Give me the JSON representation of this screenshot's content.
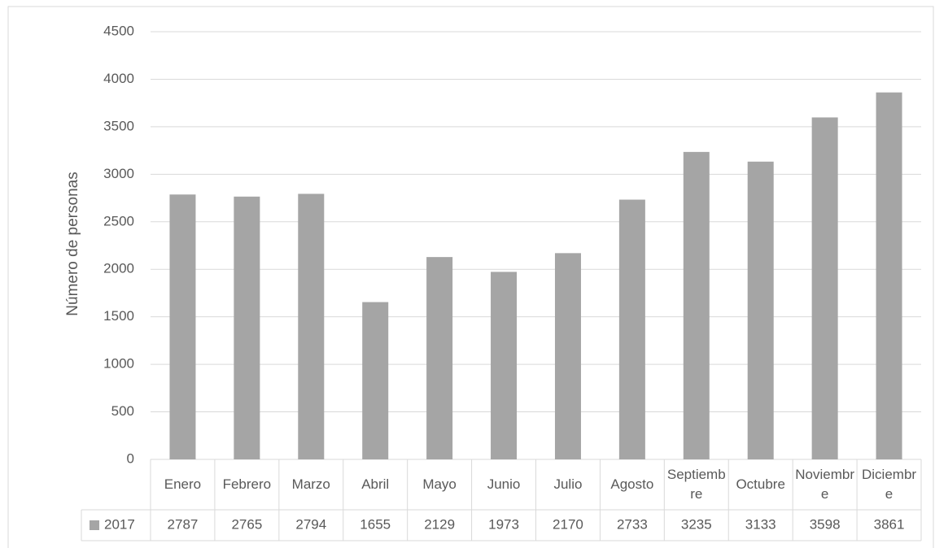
{
  "chart_data": {
    "type": "bar",
    "y_axis_label": "Número de personas",
    "categories": [
      "Enero",
      "Febrero",
      "Marzo",
      "Abril",
      "Mayo",
      "Junio",
      "Julio",
      "Agosto",
      "Septiembre",
      "Octubre",
      "Noviembre",
      "Diciembre"
    ],
    "series": [
      {
        "name": "2017",
        "color": "#a5a5a5",
        "values": [
          2787,
          2765,
          2794,
          1655,
          2129,
          1973,
          2170,
          2733,
          3235,
          3133,
          3598,
          3861
        ]
      }
    ],
    "ylim": [
      0,
      4500
    ],
    "yticks": [
      0,
      500,
      1000,
      1500,
      2000,
      2500,
      3000,
      3500,
      4000,
      4500
    ],
    "grid": true,
    "data_table": true
  }
}
